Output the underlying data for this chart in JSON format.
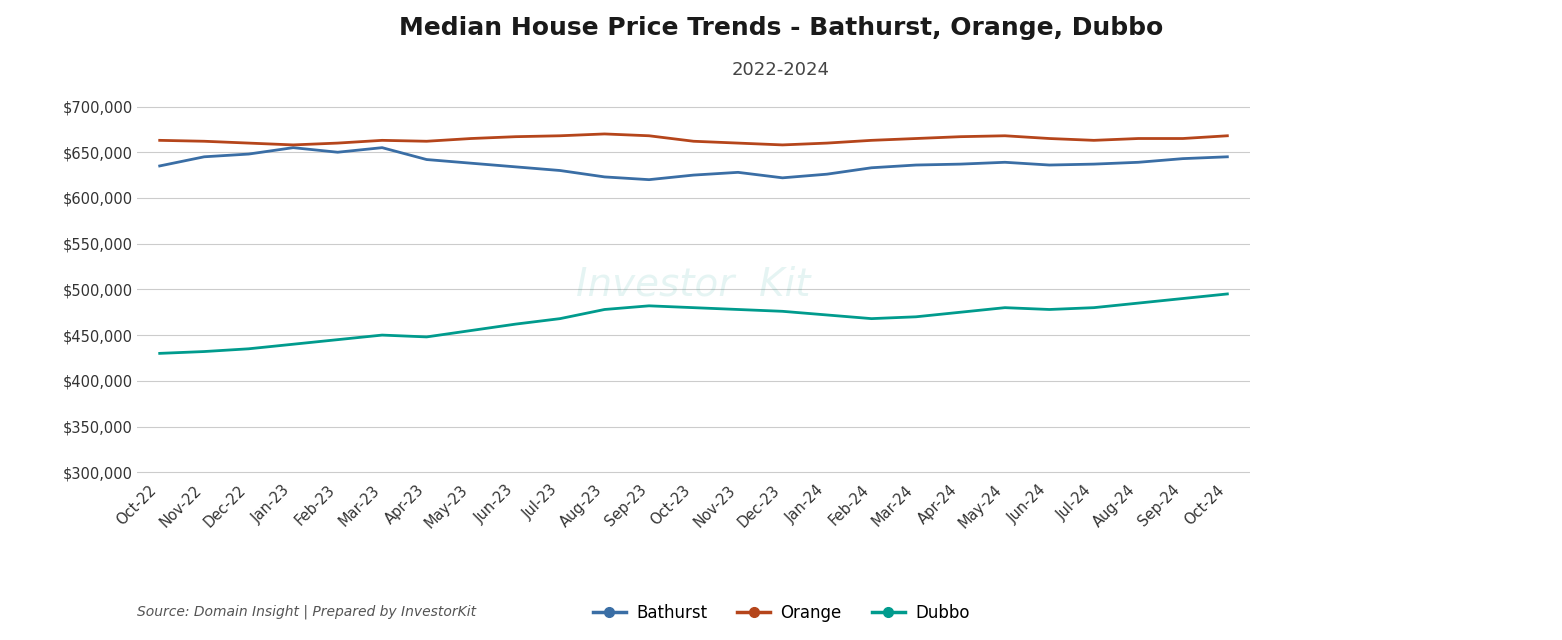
{
  "title": "Median House Price Trends - Bathurst, Orange, Dubbo",
  "subtitle": "2022-2024",
  "source_text": "Source: Domain Insight | Prepared by InvestorKit",
  "x_labels": [
    "Oct-22",
    "Nov-22",
    "Dec-22",
    "Jan-23",
    "Feb-23",
    "Mar-23",
    "Apr-23",
    "May-23",
    "Jun-23",
    "Jul-23",
    "Aug-23",
    "Sep-23",
    "Oct-23",
    "Nov-23",
    "Dec-23",
    "Jan-24",
    "Feb-24",
    "Mar-24",
    "Apr-24",
    "May-24",
    "Jun-24",
    "Jul-24",
    "Aug-24",
    "Sep-24",
    "Oct-24"
  ],
  "bathurst": [
    635000,
    645000,
    648000,
    655000,
    650000,
    655000,
    642000,
    638000,
    634000,
    630000,
    623000,
    620000,
    625000,
    628000,
    622000,
    626000,
    633000,
    636000,
    637000,
    639000,
    636000,
    637000,
    639000,
    643000,
    645000
  ],
  "orange": [
    663000,
    662000,
    660000,
    658000,
    660000,
    663000,
    662000,
    665000,
    667000,
    668000,
    670000,
    668000,
    662000,
    660000,
    658000,
    660000,
    663000,
    665000,
    667000,
    668000,
    665000,
    663000,
    665000,
    665000,
    668000
  ],
  "dubbo": [
    430000,
    432000,
    435000,
    440000,
    445000,
    450000,
    448000,
    455000,
    462000,
    468000,
    478000,
    482000,
    480000,
    478000,
    476000,
    472000,
    468000,
    470000,
    475000,
    480000,
    478000,
    480000,
    485000,
    490000,
    495000
  ],
  "colors": {
    "bathurst": "#3a6ea5",
    "orange": "#b5451b",
    "dubbo": "#009b8d"
  },
  "ylim": [
    295000,
    715000
  ],
  "yticks": [
    300000,
    350000,
    400000,
    450000,
    500000,
    550000,
    600000,
    650000,
    700000
  ],
  "background_color": "#ffffff",
  "grid_color": "#cccccc",
  "title_fontsize": 18,
  "subtitle_fontsize": 13,
  "tick_fontsize": 10.5,
  "legend_fontsize": 12,
  "source_fontsize": 10,
  "yoy_fontsize": 14
}
